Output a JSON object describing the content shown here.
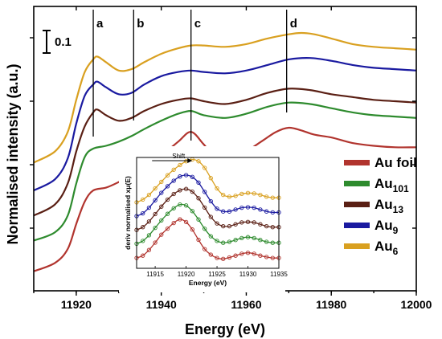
{
  "chart_data": [
    {
      "type": "line",
      "title": "",
      "xlabel": "Energy (eV)",
      "ylabel": "Normalised intensity (a.u.)",
      "xlim": [
        11910,
        12000
      ],
      "x_ticks": [
        11920,
        11940,
        11960,
        11980,
        12000
      ],
      "scale_bar_label": "0.1",
      "markers": [
        {
          "label": "a",
          "x": 11924
        },
        {
          "label": "b",
          "x": 11933.5
        },
        {
          "label": "c",
          "x": 11947
        },
        {
          "label": "d",
          "x": 11969.5
        }
      ],
      "legend": {
        "placement": "lower-right",
        "entries": [
          {
            "main": "Au foil",
            "sub": "",
            "color": "#b1342e"
          },
          {
            "main": "Au",
            "sub": "101",
            "color": "#2e8b2e"
          },
          {
            "main": "Au",
            "sub": "13",
            "color": "#5a1f14"
          },
          {
            "main": "Au",
            "sub": "9",
            "color": "#1a1aa0"
          },
          {
            "main": "Au",
            "sub": "6",
            "color": "#d9a020"
          }
        ]
      },
      "series": [
        {
          "name": "Au foil",
          "color": "#b1342e",
          "x": [
            11910,
            11915,
            11918,
            11920,
            11922,
            11924,
            11927,
            11930,
            11933,
            11936,
            11940,
            11944,
            11947,
            11950,
            11953,
            11957,
            11960,
            11964,
            11967,
            11970,
            11973,
            11976,
            11980,
            11985,
            11990,
            11995,
            12000
          ],
          "y": [
            -0.48,
            -0.42,
            -0.32,
            -0.14,
            0.02,
            0.1,
            0.12,
            0.16,
            0.21,
            0.27,
            0.35,
            0.45,
            0.52,
            0.43,
            0.33,
            0.34,
            0.38,
            0.46,
            0.52,
            0.55,
            0.53,
            0.5,
            0.48,
            0.44,
            0.42,
            0.41,
            0.41
          ]
        },
        {
          "name": "Au101",
          "color": "#2e8b2e",
          "x": [
            11910,
            11915,
            11918,
            11920,
            11922,
            11924,
            11927,
            11930,
            11933,
            11936,
            11940,
            11944,
            11947,
            11950,
            11955,
            11960,
            11965,
            11970,
            11975,
            11980,
            11985,
            11990,
            11995,
            12000
          ],
          "y": [
            -0.26,
            -0.2,
            -0.08,
            0.15,
            0.34,
            0.4,
            0.42,
            0.45,
            0.49,
            0.54,
            0.6,
            0.65,
            0.67,
            0.64,
            0.62,
            0.65,
            0.7,
            0.73,
            0.72,
            0.69,
            0.66,
            0.64,
            0.63,
            0.62
          ]
        },
        {
          "name": "Au13",
          "color": "#5a1f14",
          "x": [
            11910,
            11915,
            11918,
            11920,
            11922,
            11924,
            11925,
            11927,
            11930,
            11933,
            11936,
            11940,
            11944,
            11947,
            11950,
            11955,
            11960,
            11965,
            11970,
            11975,
            11980,
            11985,
            11990,
            11995,
            12000
          ],
          "y": [
            -0.08,
            0.0,
            0.15,
            0.38,
            0.56,
            0.66,
            0.68,
            0.64,
            0.6,
            0.62,
            0.67,
            0.72,
            0.75,
            0.76,
            0.74,
            0.72,
            0.75,
            0.8,
            0.83,
            0.82,
            0.79,
            0.77,
            0.75,
            0.74,
            0.73
          ]
        },
        {
          "name": "Au9",
          "color": "#1a1aa0",
          "x": [
            11910,
            11915,
            11918,
            11920,
            11922,
            11924,
            11925,
            11927,
            11930,
            11933,
            11936,
            11940,
            11944,
            11947,
            11950,
            11955,
            11960,
            11965,
            11970,
            11975,
            11980,
            11985,
            11990,
            11995,
            12000
          ],
          "y": [
            0.1,
            0.18,
            0.33,
            0.58,
            0.78,
            0.86,
            0.88,
            0.84,
            0.79,
            0.8,
            0.86,
            0.92,
            0.95,
            0.96,
            0.95,
            0.94,
            0.96,
            1.0,
            1.04,
            1.05,
            1.03,
            1.0,
            0.98,
            0.97,
            0.96
          ]
        },
        {
          "name": "Au6",
          "color": "#d9a020",
          "x": [
            11910,
            11915,
            11918,
            11920,
            11922,
            11924,
            11925,
            11927,
            11930,
            11933,
            11936,
            11940,
            11944,
            11947,
            11950,
            11955,
            11960,
            11965,
            11970,
            11973,
            11976,
            11980,
            11985,
            11990,
            11995,
            12000
          ],
          "y": [
            0.3,
            0.38,
            0.52,
            0.75,
            0.95,
            1.04,
            1.06,
            1.02,
            0.96,
            0.97,
            1.02,
            1.08,
            1.12,
            1.14,
            1.14,
            1.13,
            1.15,
            1.19,
            1.22,
            1.23,
            1.22,
            1.19,
            1.15,
            1.13,
            1.12,
            1.11
          ]
        }
      ]
    },
    {
      "type": "scatter",
      "title": "",
      "xlabel": "Energy (eV)",
      "ylabel": "deriv normalised xμ(E)",
      "xlim": [
        11912,
        11935
      ],
      "x_ticks": [
        11915,
        11920,
        11925,
        11930,
        11935
      ],
      "annotation": "Shift",
      "series": [
        {
          "name": "Au foil",
          "color": "#b1342e",
          "x": [
            11912,
            11913,
            11914,
            11915,
            11916,
            11917,
            11918,
            11919,
            11920,
            11921,
            11922,
            11923,
            11924,
            11925,
            11926,
            11927,
            11928,
            11929,
            11930,
            11931,
            11932,
            11933,
            11934,
            11935
          ],
          "y": [
            0.05,
            0.1,
            0.22,
            0.38,
            0.55,
            0.68,
            0.8,
            0.88,
            0.82,
            0.66,
            0.44,
            0.24,
            0.12,
            0.05,
            0.03,
            0.06,
            0.1,
            0.14,
            0.16,
            0.14,
            0.1,
            0.07,
            0.05,
            0.05
          ]
        },
        {
          "name": "Au101",
          "color": "#2e8b2e",
          "x": [
            11912,
            11913,
            11914,
            11915,
            11916,
            11917,
            11918,
            11919,
            11920,
            11921,
            11922,
            11923,
            11924,
            11925,
            11926,
            11927,
            11928,
            11929,
            11930,
            11931,
            11932,
            11933,
            11934,
            11935
          ],
          "y": [
            0.08,
            0.14,
            0.26,
            0.42,
            0.58,
            0.72,
            0.84,
            0.92,
            0.9,
            0.78,
            0.6,
            0.4,
            0.24,
            0.14,
            0.1,
            0.12,
            0.16,
            0.2,
            0.22,
            0.2,
            0.16,
            0.12,
            0.1,
            0.1
          ]
        },
        {
          "name": "Au13",
          "color": "#5a1f14",
          "x": [
            11912,
            11913,
            11914,
            11915,
            11916,
            11917,
            11918,
            11919,
            11920,
            11921,
            11922,
            11923,
            11924,
            11925,
            11926,
            11927,
            11928,
            11929,
            11930,
            11931,
            11932,
            11933,
            11934,
            11935
          ],
          "y": [
            0.1,
            0.16,
            0.28,
            0.44,
            0.6,
            0.75,
            0.87,
            0.95,
            0.98,
            0.92,
            0.78,
            0.58,
            0.38,
            0.24,
            0.18,
            0.18,
            0.22,
            0.26,
            0.27,
            0.26,
            0.22,
            0.18,
            0.16,
            0.16
          ]
        },
        {
          "name": "Au9",
          "color": "#1a1aa0",
          "x": [
            11912,
            11913,
            11914,
            11915,
            11916,
            11917,
            11918,
            11919,
            11920,
            11921,
            11922,
            11923,
            11924,
            11925,
            11926,
            11927,
            11928,
            11929,
            11930,
            11931,
            11932,
            11933,
            11934,
            11935
          ],
          "y": [
            0.12,
            0.18,
            0.3,
            0.46,
            0.62,
            0.76,
            0.88,
            0.97,
            1.0,
            0.96,
            0.84,
            0.64,
            0.44,
            0.28,
            0.22,
            0.22,
            0.26,
            0.3,
            0.31,
            0.3,
            0.26,
            0.22,
            0.2,
            0.2
          ]
        },
        {
          "name": "Au6",
          "color": "#d9a020",
          "x": [
            11912,
            11913,
            11914,
            11915,
            11916,
            11917,
            11918,
            11919,
            11920,
            11921,
            11922,
            11923,
            11924,
            11925,
            11926,
            11927,
            11928,
            11929,
            11930,
            11931,
            11932,
            11933,
            11934,
            11935
          ],
          "y": [
            0.14,
            0.2,
            0.3,
            0.44,
            0.58,
            0.72,
            0.84,
            0.94,
            1.02,
            1.06,
            1.02,
            0.88,
            0.66,
            0.44,
            0.3,
            0.26,
            0.28,
            0.32,
            0.34,
            0.33,
            0.3,
            0.26,
            0.24,
            0.24
          ]
        }
      ]
    }
  ]
}
